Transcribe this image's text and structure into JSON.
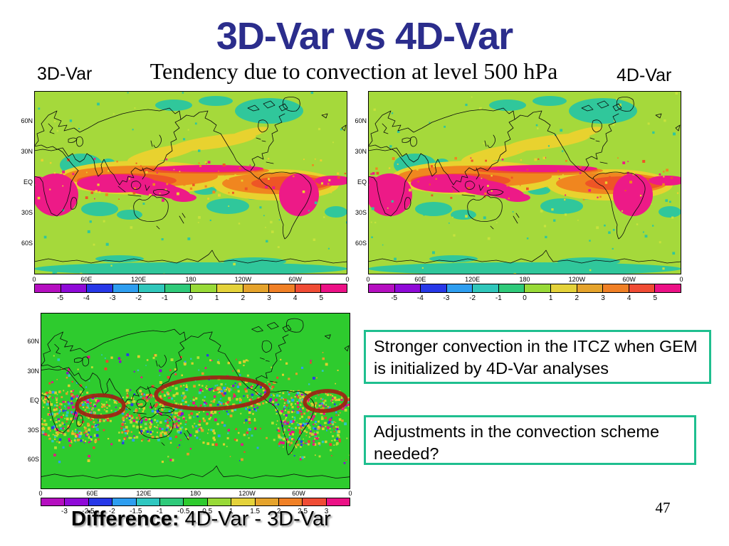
{
  "slide": {
    "title": "3D-Var vs 4D-Var",
    "subtitle": "Tendency due to convection at level 500 hPa",
    "page_number": "47"
  },
  "panels": {
    "left": {
      "label": "3D-Var"
    },
    "right": {
      "label": "4D-Var"
    },
    "difference": {
      "caption_lead": "Difference:",
      "caption_rest": " 4D-Var - 3D-Var"
    }
  },
  "callouts": {
    "itcz": "Stronger convection in the ITCZ when GEM is initialized by 4D-Var analyses",
    "adjustments": "Adjustments in the convection scheme needed?"
  },
  "axes": {
    "lat_ticks": [
      "60N",
      "30N",
      "EQ",
      "30S",
      "60S"
    ],
    "lon_ticks": [
      "0",
      "60E",
      "120E",
      "180",
      "120W",
      "60W",
      "0"
    ]
  },
  "colorbars": {
    "tendency": {
      "colors": [
        "#b50fc0",
        "#8f0ad8",
        "#2738e8",
        "#2e9ef0",
        "#30c7bb",
        "#2fca7a",
        "#98da38",
        "#e4d23a",
        "#e5a32c",
        "#f08026",
        "#f04c35",
        "#ec1186"
      ],
      "labels": [
        "-5",
        "-4",
        "-3",
        "-2",
        "-1",
        "0",
        "1",
        "2",
        "3",
        "4",
        "5"
      ]
    },
    "difference": {
      "colors": [
        "#b50fc0",
        "#8f0ad8",
        "#2738e8",
        "#2e9ef0",
        "#2fc7c0",
        "#2fca7a",
        "#2ecb2e",
        "#98da38",
        "#e4d23a",
        "#e5a32c",
        "#f08026",
        "#f04c35",
        "#ec1186"
      ],
      "labels": [
        "-3",
        "-2.5",
        "-2",
        "-1.5",
        "-1",
        "-0.5",
        "0.5",
        "1",
        "1.5",
        "2",
        "2.5",
        "3"
      ]
    }
  },
  "colors": {
    "title": "#2b2d8c",
    "callout_border": "#1fbf8f",
    "ellipse": "#a02113",
    "map_background": "#a5d93b",
    "diff_background": "#2ecb2e",
    "itcz_band": "#ed1a87"
  },
  "chart_data": [
    {
      "type": "heatmap",
      "title": "3D-Var",
      "subtitle": "Tendency due to convection at level 500 hPa",
      "x_ticks": [
        "0",
        "60E",
        "120E",
        "180",
        "120W",
        "60W",
        "0"
      ],
      "y_ticks": [
        "60N",
        "30N",
        "EQ",
        "30S",
        "60S"
      ],
      "scale_ticks": [
        -5,
        -4,
        -3,
        -2,
        -1,
        0,
        1,
        2,
        3,
        4,
        5
      ],
      "legend_position": "bottom",
      "description": "Global map; strong positive (magenta) convection tendency band along the ITCZ over Africa, Indonesia, the equatorial Pacific, South America and the Atlantic; background near +0.5 (yellow-green); negative (teal) patches over the Arabian Sea, subtropical oceans, high northern latitudes and the Antarctic coast."
    },
    {
      "type": "heatmap",
      "title": "4D-Var",
      "subtitle": "Tendency due to convection at level 500 hPa",
      "x_ticks": [
        "0",
        "60E",
        "120E",
        "180",
        "120W",
        "60W",
        "0"
      ],
      "y_ticks": [
        "60N",
        "30N",
        "EQ",
        "30S",
        "60S"
      ],
      "scale_ticks": [
        -5,
        -4,
        -3,
        -2,
        -1,
        0,
        1,
        2,
        3,
        4,
        5
      ],
      "legend_position": "bottom",
      "description": "Same field as the 3D-Var panel with a slightly stronger/wider magenta ITCZ band."
    },
    {
      "type": "heatmap",
      "title": "Difference: 4D-Var - 3D-Var",
      "x_ticks": [
        "0",
        "60E",
        "120E",
        "180",
        "120W",
        "60W",
        "0"
      ],
      "y_ticks": [
        "60N",
        "30N",
        "EQ",
        "30S",
        "60S"
      ],
      "scale_ticks": [
        -3,
        -2.5,
        -2,
        -1.5,
        -1,
        -0.5,
        0.5,
        1,
        1.5,
        2,
        2.5,
        3
      ],
      "legend_position": "bottom",
      "description": "Mostly near-zero (bright green) with speckled positive/negative differences concentrated in the tropics; three dark-red ellipses highlight positive ITCZ differences over the Indian Ocean, the central Pacific and the equatorial Atlantic."
    }
  ]
}
